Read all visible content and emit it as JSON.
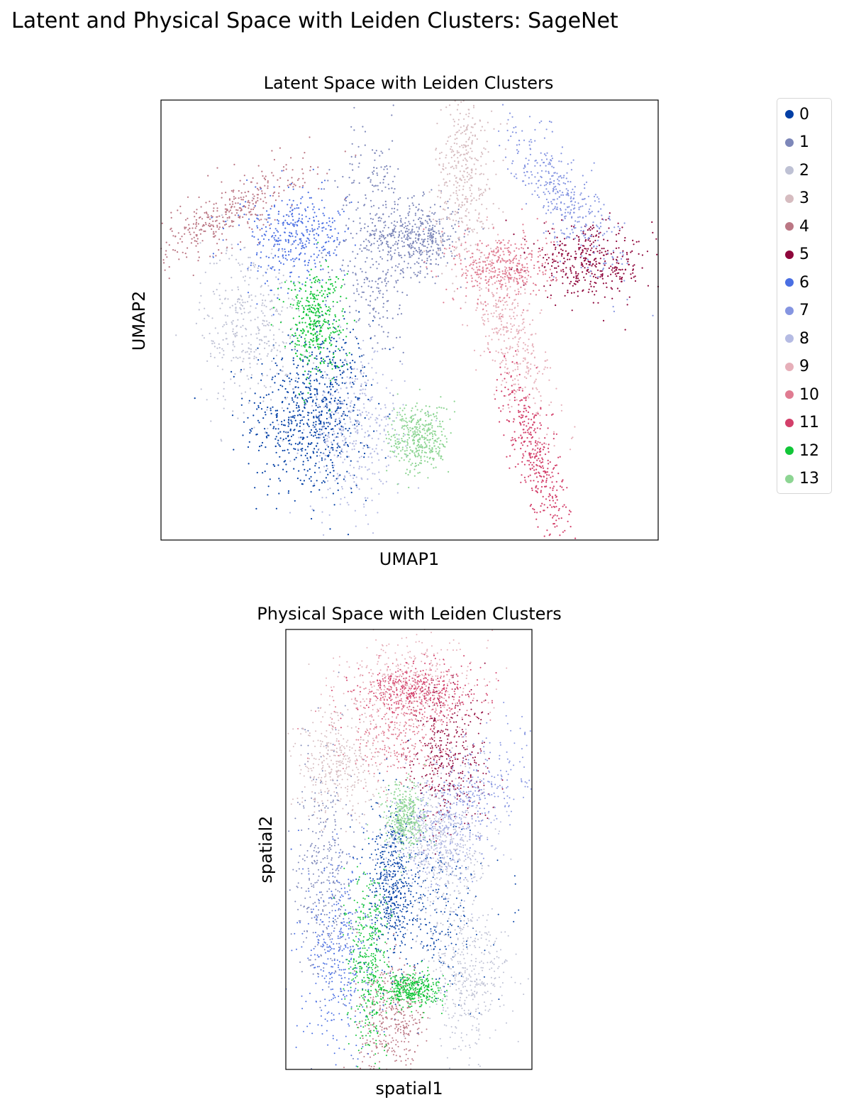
{
  "suptitle": "Latent and Physical Space with Leiden Clusters: SageNet",
  "chart_data": [
    {
      "type": "scatter",
      "title": "Latent Space with Leiden Clusters",
      "xlabel": "UMAP1",
      "ylabel": "UMAP2",
      "xlim": [
        0,
        100
      ],
      "ylim": [
        0,
        100
      ],
      "ticks": false,
      "grid": false,
      "legend_position": "right",
      "legend_title": "",
      "categories": [
        "0",
        "1",
        "2",
        "3",
        "4",
        "5",
        "6",
        "7",
        "8",
        "9",
        "10",
        "11",
        "12",
        "13"
      ],
      "colors": [
        "#023fa5",
        "#7d87b9",
        "#bec1d4",
        "#d6bcc0",
        "#bb7784",
        "#8e063b",
        "#4a6fe3",
        "#8595e1",
        "#b5bbe3",
        "#e6afb9",
        "#e07b91",
        "#d33f6a",
        "#11c638",
        "#8dd593"
      ],
      "clusters": [
        {
          "name": "0",
          "blobs": [
            [
              27,
              28,
              5,
              9,
              0
            ],
            [
              34,
              30,
              4,
              10,
              0
            ]
          ]
        },
        {
          "name": "1",
          "blobs": [
            [
              43,
              67,
              4,
              13,
              0
            ],
            [
              52,
              69,
              4,
              4,
              0
            ]
          ]
        },
        {
          "name": "2",
          "blobs": [
            [
              18,
              49,
              5,
              10,
              0
            ]
          ]
        },
        {
          "name": "3",
          "blobs": [
            [
              61,
              83,
              3,
              10,
              0
            ]
          ]
        },
        {
          "name": "4",
          "blobs": [
            [
              13,
              74,
              3,
              10,
              -55
            ]
          ]
        },
        {
          "name": "5",
          "blobs": [
            [
              86,
              63,
              6,
              4,
              -10
            ]
          ]
        },
        {
          "name": "6",
          "blobs": [
            [
              27,
              69,
              5,
              5,
              -30
            ]
          ]
        },
        {
          "name": "7",
          "blobs": [
            [
              81,
              78,
              3,
              10,
              30
            ]
          ]
        },
        {
          "name": "8",
          "blobs": [
            [
              39,
              24,
              5,
              9,
              0
            ]
          ]
        },
        {
          "name": "9",
          "blobs": [
            [
              70,
              48,
              3,
              10,
              15
            ]
          ]
        },
        {
          "name": "10",
          "blobs": [
            [
              69,
              62,
              5,
              4,
              0
            ]
          ]
        },
        {
          "name": "11",
          "blobs": [
            [
              75,
              20,
              2,
              10,
              15
            ]
          ]
        },
        {
          "name": "12",
          "blobs": [
            [
              31,
              50,
              3,
              6,
              0
            ]
          ]
        },
        {
          "name": "13",
          "blobs": [
            [
              52,
              23,
              3,
              4,
              0
            ]
          ]
        }
      ]
    },
    {
      "type": "scatter",
      "title": "Physical Space with Leiden Clusters",
      "xlabel": "spatial1",
      "ylabel": "spatial2",
      "xlim": [
        0,
        100
      ],
      "ylim": [
        0,
        100
      ],
      "ticks": false,
      "grid": false,
      "legend_position": "none",
      "clusters": [
        {
          "name": "0",
          "blobs": [
            [
              55,
              37,
              12,
              10,
              0
            ],
            [
              43,
              42,
              4,
              8,
              0
            ]
          ]
        },
        {
          "name": "1",
          "blobs": [
            [
              16,
              46,
              6,
              14,
              0
            ]
          ]
        },
        {
          "name": "2",
          "blobs": [
            [
              65,
              50,
              10,
              10,
              0
            ],
            [
              74,
              20,
              8,
              8,
              0
            ]
          ]
        },
        {
          "name": "3",
          "blobs": [
            [
              21,
              69,
              10,
              6,
              0
            ]
          ]
        },
        {
          "name": "4",
          "blobs": [
            [
              44,
              12,
              7,
              6,
              0
            ]
          ]
        },
        {
          "name": "5",
          "blobs": [
            [
              66,
              70,
              8,
              8,
              -20
            ]
          ]
        },
        {
          "name": "6",
          "blobs": [
            [
              22,
              26,
              7,
              12,
              0
            ]
          ]
        },
        {
          "name": "7",
          "blobs": [
            [
              75,
              62,
              14,
              6,
              20
            ]
          ]
        },
        {
          "name": "8",
          "blobs": [
            [
              62,
              52,
              10,
              6,
              0
            ]
          ]
        },
        {
          "name": "9",
          "blobs": [
            [
              50,
              88,
              14,
              5,
              0
            ]
          ]
        },
        {
          "name": "10",
          "blobs": [
            [
              47,
              77,
              12,
              6,
              0
            ]
          ]
        },
        {
          "name": "11",
          "blobs": [
            [
              53,
              86,
              12,
              3,
              0
            ]
          ]
        },
        {
          "name": "12",
          "blobs": [
            [
              34,
              25,
              4,
              10,
              0
            ],
            [
              51,
              18,
              6,
              2,
              0
            ]
          ]
        },
        {
          "name": "13",
          "blobs": [
            [
              48,
              57,
              4,
              4,
              0
            ]
          ]
        }
      ]
    }
  ]
}
